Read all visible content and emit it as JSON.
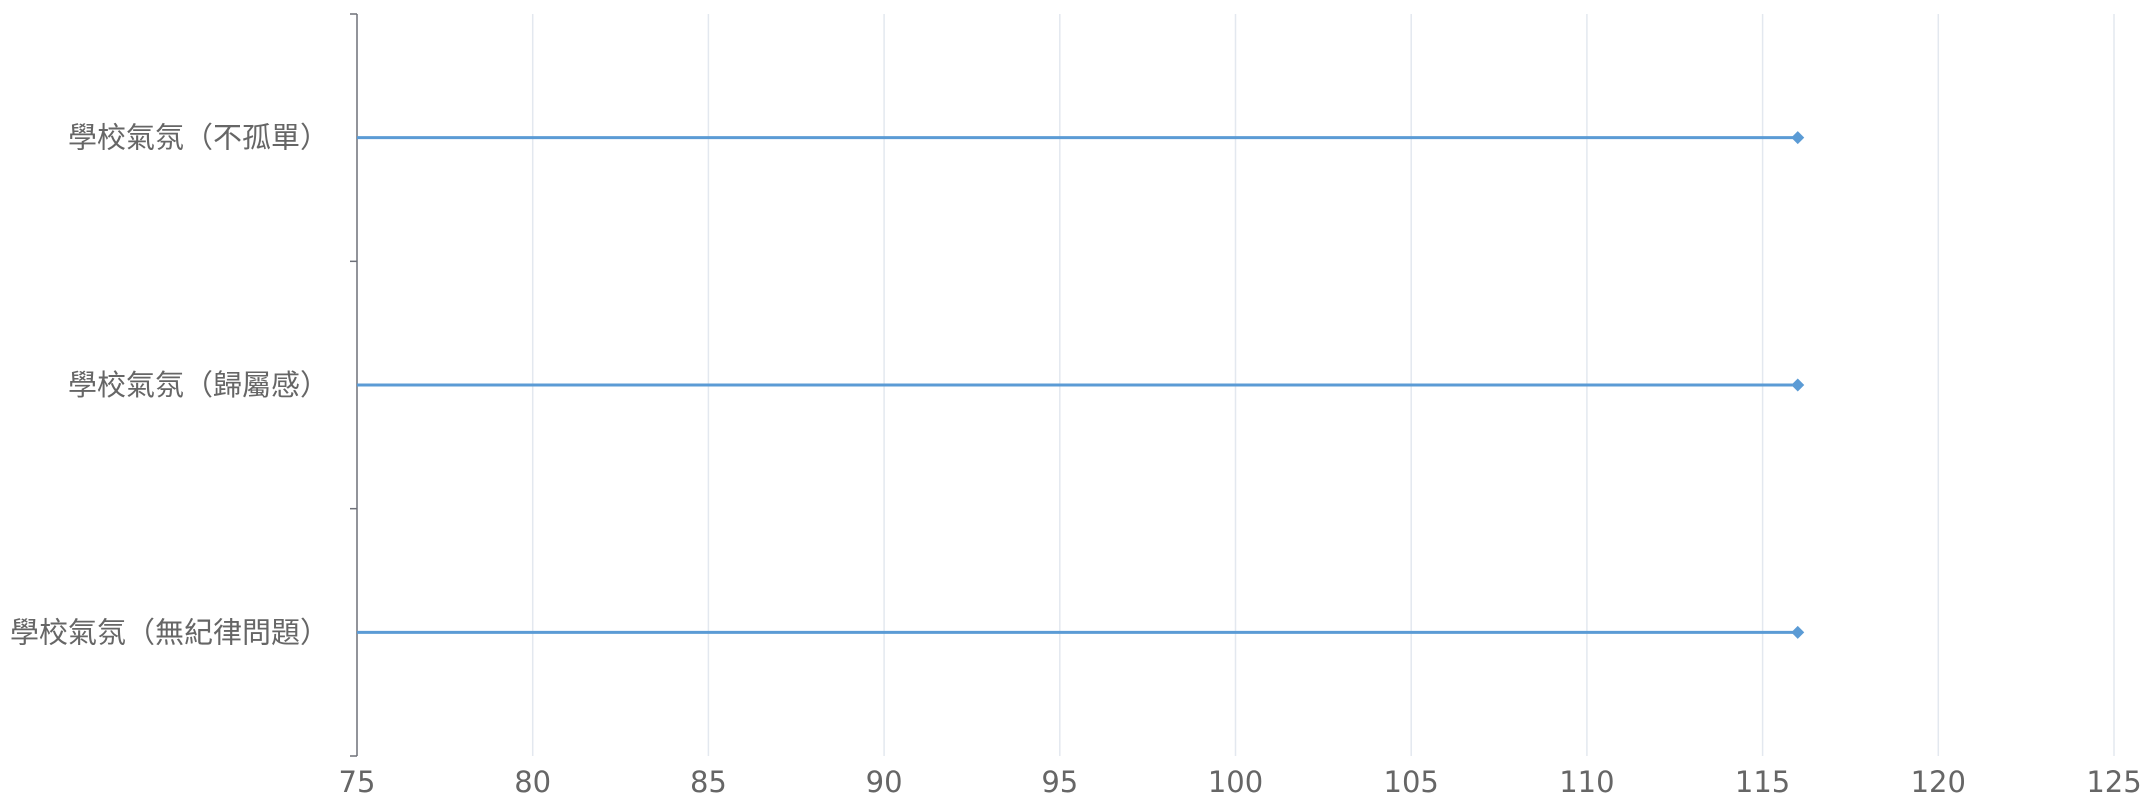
{
  "chart_data": {
    "type": "lollipop",
    "orientation": "horizontal",
    "title": "",
    "xlabel": "",
    "ylabel": "",
    "xlim": [
      75,
      125
    ],
    "x_ticks": [
      "75",
      "80",
      "85",
      "90",
      "95",
      "100",
      "105",
      "110",
      "115",
      "120",
      "125"
    ],
    "categories": [
      "學校氣氛（不孤單）",
      "學校氣氛（歸屬感）",
      "學校氣氛（無紀律問題）"
    ],
    "values": [
      116,
      116,
      116
    ],
    "grid": true,
    "color": "#5b9bd5"
  }
}
